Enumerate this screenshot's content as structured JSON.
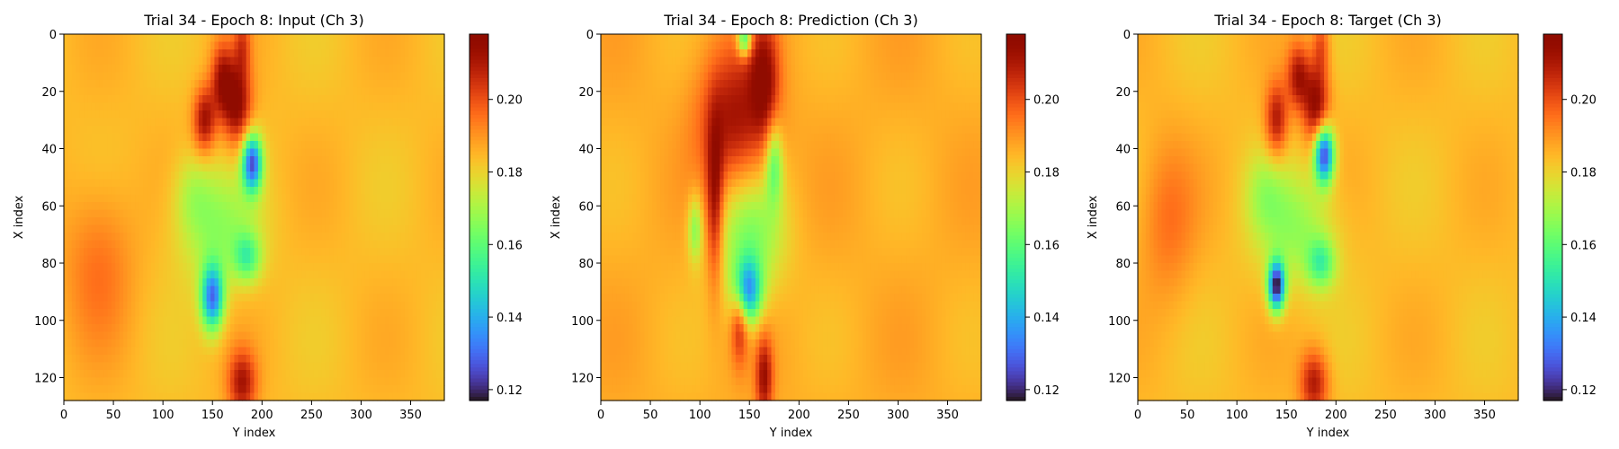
{
  "chart_data": [
    {
      "type": "heatmap",
      "title": "Trial 34 - Epoch 8: Input (Ch 3)",
      "xlabel": "Y index",
      "ylabel": "X index",
      "xlim": [
        0,
        384
      ],
      "ylim": [
        128,
        0
      ],
      "x_ticks": [
        "0",
        "50",
        "100",
        "150",
        "200",
        "250",
        "300",
        "350"
      ],
      "y_ticks": [
        "0",
        "20",
        "40",
        "60",
        "80",
        "100",
        "120"
      ],
      "colorbar": {
        "range": [
          0.117,
          0.218
        ],
        "ticks": [
          "0.12",
          "0.14",
          "0.16",
          "0.18",
          "0.20"
        ],
        "colormap": "turbo"
      },
      "background_value": 0.184,
      "features": [
        {
          "x": 175,
          "y": 25,
          "sx": 10,
          "sy": 10,
          "value": 0.215
        },
        {
          "x": 142,
          "y": 30,
          "sx": 8,
          "sy": 8,
          "value": 0.212
        },
        {
          "x": 160,
          "y": 16,
          "sx": 8,
          "sy": 9,
          "value": 0.21
        },
        {
          "x": 180,
          "y": 4,
          "sx": 6,
          "sy": 8,
          "value": 0.2
        },
        {
          "x": 180,
          "y": 122,
          "sx": 10,
          "sy": 8,
          "value": 0.21
        },
        {
          "x": 190,
          "y": 45,
          "sx": 7,
          "sy": 7,
          "value": 0.128
        },
        {
          "x": 155,
          "y": 68,
          "sx": 28,
          "sy": 14,
          "value": 0.168
        },
        {
          "x": 150,
          "y": 92,
          "sx": 8,
          "sy": 8,
          "value": 0.132
        },
        {
          "x": 185,
          "y": 78,
          "sx": 10,
          "sy": 6,
          "value": 0.16
        },
        {
          "x": 130,
          "y": 55,
          "sx": 14,
          "sy": 10,
          "value": 0.174
        },
        {
          "x": 35,
          "y": 80,
          "sx": 25,
          "sy": 20,
          "value": 0.195
        }
      ]
    },
    {
      "type": "heatmap",
      "title": "Trial 34 - Epoch 8: Prediction (Ch 3)",
      "xlabel": "Y index",
      "ylabel": "X index",
      "xlim": [
        0,
        384
      ],
      "ylim": [
        128,
        0
      ],
      "x_ticks": [
        "0",
        "50",
        "100",
        "150",
        "200",
        "250",
        "300",
        "350"
      ],
      "y_ticks": [
        "0",
        "20",
        "40",
        "60",
        "80",
        "100",
        "120"
      ],
      "colorbar": {
        "range": [
          0.117,
          0.218
        ],
        "ticks": [
          "0.12",
          "0.14",
          "0.16",
          "0.18",
          "0.20"
        ],
        "colormap": "turbo"
      },
      "background_value": 0.186,
      "features": [
        {
          "x": 135,
          "y": 30,
          "sx": 25,
          "sy": 18,
          "value": 0.212
        },
        {
          "x": 165,
          "y": 15,
          "sx": 10,
          "sy": 14,
          "value": 0.21
        },
        {
          "x": 115,
          "y": 60,
          "sx": 6,
          "sy": 20,
          "value": 0.212
        },
        {
          "x": 140,
          "y": 100,
          "sx": 6,
          "sy": 10,
          "value": 0.21
        },
        {
          "x": 165,
          "y": 120,
          "sx": 6,
          "sy": 10,
          "value": 0.212
        },
        {
          "x": 145,
          "y": 2,
          "sx": 5,
          "sy": 4,
          "value": 0.15
        },
        {
          "x": 150,
          "y": 70,
          "sx": 25,
          "sy": 16,
          "value": 0.165
        },
        {
          "x": 148,
          "y": 90,
          "sx": 10,
          "sy": 8,
          "value": 0.14
        },
        {
          "x": 175,
          "y": 45,
          "sx": 6,
          "sy": 10,
          "value": 0.162
        },
        {
          "x": 95,
          "y": 68,
          "sx": 5,
          "sy": 8,
          "value": 0.166
        }
      ]
    },
    {
      "type": "heatmap",
      "title": "Trial 34 - Epoch 8: Target (Ch 3)",
      "xlabel": "Y index",
      "ylabel": "X index",
      "xlim": [
        0,
        384
      ],
      "ylim": [
        128,
        0
      ],
      "x_ticks": [
        "0",
        "50",
        "100",
        "150",
        "200",
        "250",
        "300",
        "350"
      ],
      "y_ticks": [
        "0",
        "20",
        "40",
        "60",
        "80",
        "100",
        "120"
      ],
      "colorbar": {
        "range": [
          0.117,
          0.218
        ],
        "ticks": [
          "0.12",
          "0.14",
          "0.16",
          "0.18",
          "0.20"
        ],
        "colormap": "turbo"
      },
      "background_value": 0.184,
      "features": [
        {
          "x": 180,
          "y": 25,
          "sx": 9,
          "sy": 10,
          "value": 0.215
        },
        {
          "x": 140,
          "y": 30,
          "sx": 8,
          "sy": 9,
          "value": 0.21
        },
        {
          "x": 162,
          "y": 15,
          "sx": 8,
          "sy": 8,
          "value": 0.21
        },
        {
          "x": 185,
          "y": 4,
          "sx": 6,
          "sy": 8,
          "value": 0.2
        },
        {
          "x": 178,
          "y": 122,
          "sx": 10,
          "sy": 8,
          "value": 0.21
        },
        {
          "x": 188,
          "y": 42,
          "sx": 7,
          "sy": 7,
          "value": 0.122
        },
        {
          "x": 160,
          "y": 68,
          "sx": 28,
          "sy": 14,
          "value": 0.168
        },
        {
          "x": 140,
          "y": 88,
          "sx": 6,
          "sy": 6,
          "value": 0.118
        },
        {
          "x": 185,
          "y": 80,
          "sx": 10,
          "sy": 6,
          "value": 0.16
        },
        {
          "x": 128,
          "y": 55,
          "sx": 14,
          "sy": 10,
          "value": 0.174
        },
        {
          "x": 30,
          "y": 65,
          "sx": 20,
          "sy": 20,
          "value": 0.195
        }
      ]
    }
  ]
}
